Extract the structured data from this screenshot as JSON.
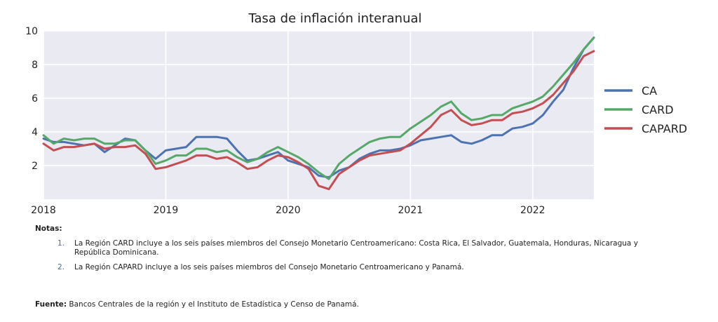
{
  "chart_data": {
    "type": "line",
    "title": "Tasa de inflación interanual",
    "xlabel": "",
    "ylabel": "",
    "x_ticks": [
      "2018",
      "2019",
      "2020",
      "2021",
      "2022"
    ],
    "x_range": [
      2018.0,
      2022.5
    ],
    "ylim": [
      0,
      10
    ],
    "y_ticks": [
      2,
      4,
      6,
      8,
      10
    ],
    "grid": true,
    "legend_position": "right",
    "x": [
      2018.0,
      2018.0833,
      2018.1667,
      2018.25,
      2018.3333,
      2018.4167,
      2018.5,
      2018.5833,
      2018.6667,
      2018.75,
      2018.8333,
      2018.9167,
      2019.0,
      2019.0833,
      2019.1667,
      2019.25,
      2019.3333,
      2019.4167,
      2019.5,
      2019.5833,
      2019.6667,
      2019.75,
      2019.8333,
      2019.9167,
      2020.0,
      2020.0833,
      2020.1667,
      2020.25,
      2020.3333,
      2020.4167,
      2020.5,
      2020.5833,
      2020.6667,
      2020.75,
      2020.8333,
      2020.9167,
      2021.0,
      2021.0833,
      2021.1667,
      2021.25,
      2021.3333,
      2021.4167,
      2021.5,
      2021.5833,
      2021.6667,
      2021.75,
      2021.8333,
      2021.9167,
      2022.0,
      2022.0833,
      2022.1667,
      2022.25,
      2022.3333,
      2022.4167,
      2022.5
    ],
    "series": [
      {
        "name": "CA",
        "color": "#4c72b0",
        "values": [
          3.6,
          3.4,
          3.4,
          3.3,
          3.2,
          3.3,
          2.8,
          3.2,
          3.6,
          3.5,
          2.9,
          2.4,
          2.9,
          3.0,
          3.1,
          3.7,
          3.7,
          3.7,
          3.6,
          2.9,
          2.3,
          2.4,
          2.6,
          2.8,
          2.3,
          2.1,
          1.9,
          1.4,
          1.3,
          1.7,
          1.9,
          2.4,
          2.7,
          2.9,
          2.9,
          3.0,
          3.2,
          3.5,
          3.6,
          3.7,
          3.8,
          3.4,
          3.3,
          3.5,
          3.8,
          3.8,
          4.2,
          4.3,
          4.5,
          5.0,
          5.8,
          6.5,
          7.8,
          8.9,
          9.6
        ]
      },
      {
        "name": "CARD",
        "color": "#55a868",
        "values": [
          3.8,
          3.3,
          3.6,
          3.5,
          3.6,
          3.6,
          3.3,
          3.3,
          3.5,
          3.5,
          2.9,
          2.1,
          2.3,
          2.6,
          2.6,
          3.0,
          3.0,
          2.8,
          2.9,
          2.5,
          2.2,
          2.4,
          2.8,
          3.1,
          2.8,
          2.5,
          2.1,
          1.6,
          1.2,
          2.1,
          2.6,
          3.0,
          3.4,
          3.6,
          3.7,
          3.7,
          4.2,
          4.6,
          5.0,
          5.5,
          5.8,
          5.1,
          4.7,
          4.8,
          5.0,
          5.0,
          5.4,
          5.6,
          5.8,
          6.1,
          6.7,
          7.4,
          8.1,
          8.9,
          9.6
        ]
      },
      {
        "name": "CAPARD",
        "color": "#c44e52",
        "values": [
          3.3,
          2.9,
          3.1,
          3.1,
          3.2,
          3.3,
          3.0,
          3.1,
          3.1,
          3.2,
          2.7,
          1.8,
          1.9,
          2.1,
          2.3,
          2.6,
          2.6,
          2.4,
          2.5,
          2.2,
          1.8,
          1.9,
          2.3,
          2.6,
          2.5,
          2.2,
          1.8,
          0.8,
          0.6,
          1.5,
          1.9,
          2.3,
          2.6,
          2.7,
          2.8,
          2.9,
          3.3,
          3.8,
          4.3,
          5.0,
          5.3,
          4.7,
          4.4,
          4.5,
          4.7,
          4.7,
          5.1,
          5.2,
          5.4,
          5.7,
          6.2,
          6.9,
          7.6,
          8.5,
          8.8
        ]
      }
    ]
  },
  "notes": {
    "heading": "Notas:",
    "items": [
      {
        "num": "1.",
        "text": "La Región CARD incluye a los seis países miembros del Consejo Monetario Centroamericano: Costa Rica, El Salvador, Guatemala, Honduras, Nicaragua y República Dominicana."
      },
      {
        "num": "2.",
        "text": "La Región CAPARD incluye a los seis países miembros del Consejo Monetario Centroamericano y Panamá."
      }
    ]
  },
  "source": {
    "label": "Fuente:",
    "text": "Bancos Centrales de la región y el Instituto de Estadística y Censo de Panamá."
  }
}
